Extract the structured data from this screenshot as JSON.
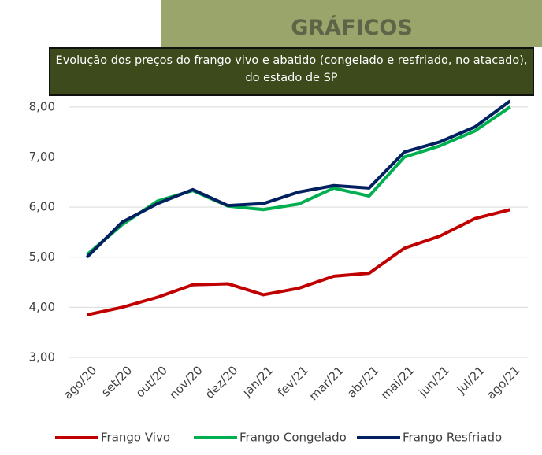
{
  "header": {
    "title": "GRÁFICOS",
    "subtitle": "Evolução dos preços do frango vivo e abatido (congelado e resfriado, no atacado), do estado de SP"
  },
  "chart_data": {
    "type": "line",
    "categories": [
      "ago/20",
      "set/20",
      "out/20",
      "nov/20",
      "dez/20",
      "jan/21",
      "fev/21",
      "mar/21",
      "abr/21",
      "mai/21",
      "jun/21",
      "jul/21",
      "ago/21"
    ],
    "series": [
      {
        "name": "Frango Vivo",
        "color": "#c00000",
        "values": [
          3.85,
          4.0,
          4.2,
          4.45,
          4.47,
          4.25,
          4.38,
          4.62,
          4.68,
          5.18,
          5.42,
          5.77,
          5.95
        ]
      },
      {
        "name": "Frango Congelado",
        "color": "#00b050",
        "values": [
          5.05,
          5.65,
          6.12,
          6.33,
          6.02,
          5.95,
          6.06,
          6.38,
          6.22,
          7.0,
          7.22,
          7.52,
          8.0
        ]
      },
      {
        "name": "Frango Resfriado",
        "color": "#002060",
        "values": [
          5.0,
          5.7,
          6.07,
          6.35,
          6.03,
          6.07,
          6.3,
          6.43,
          6.38,
          7.1,
          7.3,
          7.6,
          8.12
        ]
      }
    ],
    "ylim": [
      3,
      8.5
    ],
    "yticks": [
      {
        "value": 3,
        "label": "3,00"
      },
      {
        "value": 4,
        "label": "4,00"
      },
      {
        "value": 5,
        "label": "5,00"
      },
      {
        "value": 6,
        "label": "6,00"
      },
      {
        "value": 7,
        "label": "7,00"
      },
      {
        "value": 8,
        "label": "8,00"
      }
    ],
    "grid": true,
    "legend": "bottom"
  }
}
